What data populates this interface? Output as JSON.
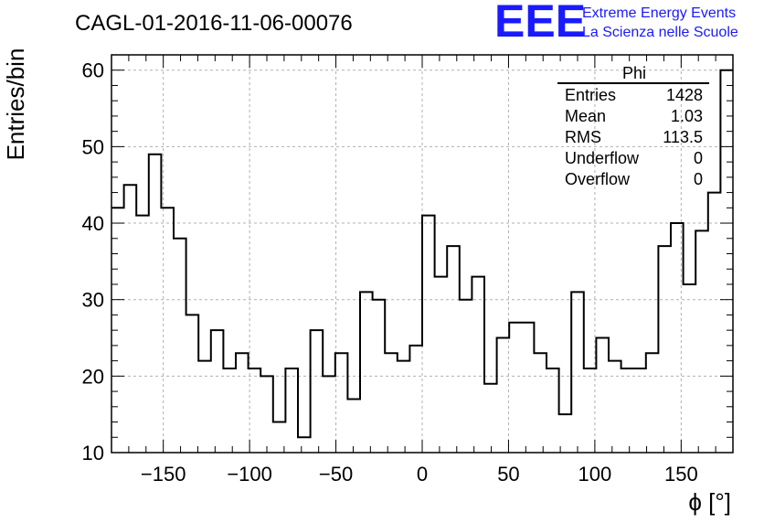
{
  "chart_data": {
    "type": "bar",
    "title": "CAGL-01-2016-11-06-00076",
    "xlabel": "ϕ [°]",
    "ylabel": "Entries/bin",
    "xlim": [
      -180,
      180
    ],
    "ylim": [
      10,
      62
    ],
    "bin_width": 7.2,
    "grid": true,
    "x_ticks": [
      -150,
      -100,
      -50,
      0,
      50,
      100,
      150
    ],
    "x_tick_labels": [
      "−150",
      "−100",
      "−50",
      "0",
      "50",
      "100",
      "150"
    ],
    "y_ticks": [
      10,
      20,
      30,
      40,
      50,
      60
    ],
    "y_tick_labels": [
      "10",
      "20",
      "30",
      "40",
      "50",
      "60"
    ],
    "values": [
      42,
      45,
      41,
      49,
      42,
      38,
      28,
      22,
      26,
      21,
      23,
      21,
      20,
      14,
      21,
      12,
      26,
      20,
      23,
      17,
      31,
      30,
      23,
      22,
      24,
      41,
      33,
      37,
      30,
      33,
      19,
      25,
      27,
      27,
      23,
      21,
      15,
      31,
      21,
      25,
      22,
      21,
      21,
      23,
      37,
      40,
      32,
      39,
      44,
      60
    ],
    "stats": {
      "name": "Phi",
      "rows": [
        {
          "label": "Entries",
          "value": "1428"
        },
        {
          "label": "Mean",
          "value": "1.03"
        },
        {
          "label": "RMS",
          "value": "113.5"
        },
        {
          "label": "Underflow",
          "value": "0"
        },
        {
          "label": "Overflow",
          "value": "0"
        }
      ]
    }
  },
  "logo": {
    "mark": "EEE",
    "line1": "Extreme Energy Events",
    "line2": "La Scienza nelle Scuole"
  }
}
